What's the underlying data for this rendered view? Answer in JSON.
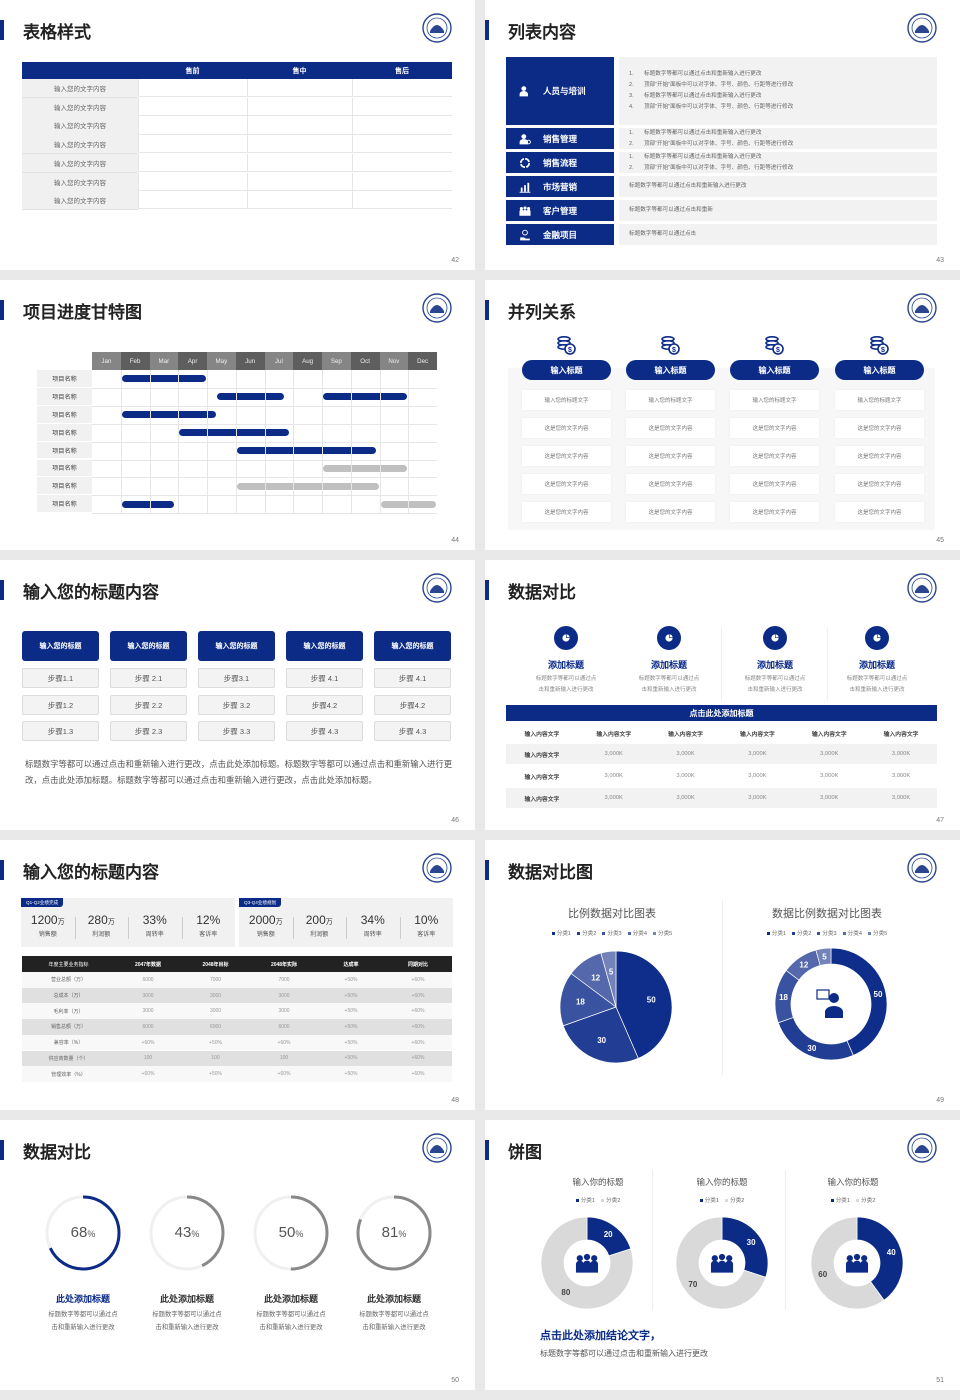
{
  "colors": {
    "primary": "#0b2b87",
    "gray_bar": "#c0c0c0",
    "ring_gray": "#888888",
    "donut_gray": "#d9d9d9"
  },
  "slides": [
    {
      "title": "表格样式",
      "page": "42",
      "logo": "school-seal",
      "table": {
        "headers": [
          "",
          "售前",
          "售中",
          "售后"
        ],
        "rows": [
          "输入您的文字内容",
          "输入您的文字内容",
          "输入您的文字内容",
          "输入您的文字内容",
          "输入您的文字内容",
          "输入您的文字内容",
          "输入您的文字内容"
        ]
      }
    },
    {
      "title": "列表内容",
      "page": "43",
      "items": [
        {
          "label": "人员与培训",
          "icon": "training-icon",
          "numbered": true,
          "lines": [
            "标题数字等都可以通过点击和重新输入进行更改",
            "顶部“开始”面板中可以对字体、字号、颜色、行距等进行修改",
            "标题数字等都可以通过点击和重新输入进行更改",
            "顶部“开始”面板中可以对字体、字号、颜色、行距等进行修改"
          ]
        },
        {
          "label": "销售管理",
          "icon": "sales-manager-icon",
          "numbered": true,
          "lines": [
            "标题数字等都可以通过点击和重新输入进行更改",
            "顶部“开始”面板中可以对字体、字号、颜色、行距等进行修改"
          ]
        },
        {
          "label": "销售流程",
          "icon": "cycle-icon",
          "numbered": true,
          "lines": [
            "标题数字等都可以通过点击和重新输入进行更改",
            "顶部“开始”面板中可以对字体、字号、颜色、行距等进行修改"
          ]
        },
        {
          "label": "市场营销",
          "icon": "bar-chart-icon",
          "numbered": false,
          "lines": [
            "标题数字等都可以通过点击和重新输入进行更改"
          ]
        },
        {
          "label": "客户管理",
          "icon": "users-icon",
          "numbered": false,
          "lines": [
            "标题数字等都可以通过点击和重新"
          ]
        },
        {
          "label": "金融项目",
          "icon": "money-hand-icon",
          "numbered": false,
          "lines": [
            "标题数字等都可以通过点击"
          ]
        }
      ]
    },
    {
      "title": "项目进度甘特图",
      "page": "44",
      "months": [
        "Jan",
        "Feb",
        "Mar",
        "Apr",
        "May",
        "Jun",
        "Jul",
        "Aug",
        "Sep",
        "Oct",
        "Nov",
        "Dec"
      ],
      "rows": [
        {
          "label": "项目名称",
          "bars": [
            {
              "start": 1,
              "end": 4,
              "status": "active"
            }
          ]
        },
        {
          "label": "项目名称",
          "bars": [
            {
              "start": 4.3,
              "end": 6.7,
              "status": "active"
            },
            {
              "start": 8,
              "end": 11,
              "status": "active"
            }
          ]
        },
        {
          "label": "项目名称",
          "bars": [
            {
              "start": 1,
              "end": 4.35,
              "status": "active"
            }
          ]
        },
        {
          "label": "项目名称",
          "bars": [
            {
              "start": 3,
              "end": 6.9,
              "status": "active"
            }
          ]
        },
        {
          "label": "项目名称",
          "bars": [
            {
              "start": 5,
              "end": 9.9,
              "status": "active"
            }
          ]
        },
        {
          "label": "项目名称",
          "bars": [
            {
              "start": 8,
              "end": 11,
              "status": "planned"
            }
          ]
        },
        {
          "label": "项目名称",
          "bars": [
            {
              "start": 5,
              "end": 10,
              "status": "planned"
            }
          ]
        },
        {
          "label": "项目名称",
          "bars": [
            {
              "start": 1,
              "end": 2.9,
              "status": "active"
            },
            {
              "start": 10,
              "end": 12,
              "status": "planned"
            }
          ]
        }
      ]
    },
    {
      "title": "并列关系",
      "page": "45",
      "columns": [
        {
          "title": "输入标题",
          "icon": "coins-icon",
          "items": [
            "输入您的标题文字",
            "这是您的文字内容",
            "这是您的文字内容",
            "这是您的文字内容",
            "这是您的文字内容"
          ]
        },
        {
          "title": "输入标题",
          "icon": "coins-icon",
          "items": [
            "输入您的标题文字",
            "这是您的文字内容",
            "这是您的文字内容",
            "这是您的文字内容",
            "这是您的文字内容"
          ]
        },
        {
          "title": "输入标题",
          "icon": "coins-icon",
          "items": [
            "输入您的标题文字",
            "这是您的文字内容",
            "这是您的文字内容",
            "这是您的文字内容",
            "这是您的文字内容"
          ]
        },
        {
          "title": "输入标题",
          "icon": "coins-icon",
          "items": [
            "输入您的标题文字",
            "这是您的文字内容",
            "这是您的文字内容",
            "这是您的文字内容",
            "这是您的文字内容"
          ]
        }
      ]
    },
    {
      "title": "输入您的标题内容",
      "page": "46",
      "columns": [
        {
          "title": "输入您的标题",
          "steps": [
            "步骤1.1",
            "步骤1.2",
            "步骤1.3"
          ]
        },
        {
          "title": "输入您的标题",
          "steps": [
            "步骤 2.1",
            "步骤 2.2",
            "步骤 2.3"
          ]
        },
        {
          "title": "输入您的标题",
          "steps": [
            "步骤3.1",
            "步骤 3.2",
            "步骤 3.3"
          ]
        },
        {
          "title": "输入您的标题",
          "steps": [
            "步骤 4.1",
            "步骤4.2",
            "步骤 4.3"
          ]
        },
        {
          "title": "输入您的标题",
          "steps": [
            "步骤 4.1",
            "步骤4.2",
            "步骤 4.3"
          ]
        }
      ],
      "paragraph": "标题数字等都可以通过点击和重新输入进行更改，点击此处添加标题。标题数字等都可以通过点击和重新输入进行更改，点击此处添加标题。标题数字等都可以通过点击和重新输入进行更改，点击此处添加标题。"
    },
    {
      "title": "数据对比",
      "page": "47",
      "features": [
        {
          "title": "添加标题",
          "icon": "pie-icon",
          "desc": [
            "标题数字等都可以通过点",
            "击和重新输入进行更改"
          ]
        },
        {
          "title": "添加标题",
          "icon": "pie-icon",
          "desc": [
            "标题数字等都可以通过点",
            "击和重新输入进行更改"
          ]
        },
        {
          "title": "添加标题",
          "icon": "pie-icon",
          "desc": [
            "标题数字等都可以通过点",
            "击和重新输入进行更改"
          ]
        },
        {
          "title": "添加标题",
          "icon": "pie-icon",
          "desc": [
            "标题数字等都可以通过点",
            "击和重新输入进行更改"
          ]
        }
      ],
      "table_title": "点击此处添加标题",
      "headers": [
        "输入内容文字",
        "输入内容文字",
        "输入内容文字",
        "输入内容文字",
        "输入内容文字",
        "输入内容文字"
      ],
      "rows": [
        [
          "输入内容文字",
          "3,000K",
          "3,000K",
          "3,000K",
          "3,000K",
          "3,000K"
        ],
        [
          "输入内容文字",
          "3,000K",
          "3,000K",
          "3,000K",
          "3,000K",
          "3,000K"
        ],
        [
          "输入内容文字",
          "3,000K",
          "3,000K",
          "3,000K",
          "3,000K",
          "3,000K"
        ]
      ]
    },
    {
      "title": "输入您的标题内容",
      "page": "48",
      "cards": [
        {
          "tag": "Q1-Q2业绩完成",
          "stats": [
            {
              "value": "1200",
              "unit": "万",
              "label": "销售额"
            },
            {
              "value": "280",
              "unit": "万",
              "label": "利润额"
            },
            {
              "value": "33%",
              "unit": "",
              "label": "周转率"
            },
            {
              "value": "12%",
              "unit": "",
              "label": "客诉率"
            }
          ]
        },
        {
          "tag": "Q3-Q4业绩规划",
          "stats": [
            {
              "value": "2000",
              "unit": "万",
              "label": "销售额"
            },
            {
              "value": "200",
              "unit": "万",
              "label": "利润额"
            },
            {
              "value": "34%",
              "unit": "",
              "label": "周转率"
            },
            {
              "value": "10%",
              "unit": "",
              "label": "客诉率"
            }
          ]
        }
      ],
      "headers": [
        "年度主要业务指标",
        "2047年数据",
        "2048年目标",
        "2048年实际",
        "达成率",
        "同期对比"
      ],
      "rows": [
        [
          "营业总额（万）",
          "6000",
          "7000",
          "7000",
          "+50%",
          "+60%"
        ],
        [
          "总成本（万）",
          "3000",
          "3000",
          "3000",
          "+50%",
          "+60%"
        ],
        [
          "毛利率（万）",
          "3000",
          "3000",
          "3000",
          "+50%",
          "+60%"
        ],
        [
          "销售总额（万）",
          "6000",
          "6000",
          "6000",
          "+50%",
          "+60%"
        ],
        [
          "兼容率（%）",
          "+60%",
          "+50%",
          "+60%",
          "+50%",
          "+60%"
        ],
        [
          "供应商数量（个）",
          "100",
          "100",
          "100",
          "+50%",
          "+60%"
        ],
        [
          "管理效率（%）",
          "+60%",
          "+50%",
          "+60%",
          "+50%",
          "+60%"
        ]
      ]
    },
    {
      "title": "数据对比图",
      "page": "49",
      "center_icon": "consultant-icon"
    },
    {
      "title": "数据对比",
      "page": "50",
      "rings": [
        {
          "percent": 68,
          "unit": "%",
          "title": "此处添加标题",
          "desc": [
            "标题数字等都可以通过点",
            "击和重新输入进行更改"
          ],
          "color": "#0b2b87"
        },
        {
          "percent": 43,
          "unit": "%",
          "title": "此处添加标题",
          "desc": [
            "标题数字等都可以通过点",
            "击和重新输入进行更改"
          ],
          "color": "#888888"
        },
        {
          "percent": 50,
          "unit": "%",
          "title": "此处添加标题",
          "desc": [
            "标题数字等都可以通过点",
            "击和重新输入进行更改"
          ],
          "color": "#888888"
        },
        {
          "percent": 81,
          "unit": "%",
          "title": "此处添加标题",
          "desc": [
            "标题数字等都可以通过点",
            "击和重新输入进行更改"
          ],
          "color": "#888888"
        }
      ]
    },
    {
      "title": "饼图",
      "page": "51",
      "center_icon": "team-icon",
      "conclusion": "点击此处添加结论文字，",
      "conclusion_text": "标题数字等都可以通过点击和重新输入进行更改"
    }
  ],
  "chart_data": [
    {
      "type": "pie",
      "title": "比例数据对比图表",
      "categories": [
        "分类1",
        "分类2",
        "分类3",
        "分类4",
        "分类5"
      ],
      "values": [
        50,
        30,
        18,
        12,
        5
      ],
      "colors": [
        "#0f2d8a",
        "#213e94",
        "#3a53a0",
        "#5468ab",
        "#7383b9"
      ],
      "legend": "top"
    },
    {
      "type": "pie",
      "donut": true,
      "title": "数据比例数据对比图表",
      "categories": [
        "分类1",
        "分类2",
        "分类3",
        "分类4",
        "分类5"
      ],
      "values": [
        50,
        30,
        18,
        12,
        5
      ],
      "colors": [
        "#0f2d8a",
        "#213e94",
        "#3a53a0",
        "#5468ab",
        "#7383b9"
      ],
      "legend": "top"
    },
    {
      "type": "pie",
      "donut": true,
      "title": "输入你的标题",
      "categories": [
        "分类1",
        "分类2"
      ],
      "values": [
        20,
        80
      ],
      "colors": [
        "#0b2b87",
        "#d9d9d9"
      ],
      "legend": "top"
    },
    {
      "type": "pie",
      "donut": true,
      "title": "输入你的标题",
      "categories": [
        "分类1",
        "分类2"
      ],
      "values": [
        30,
        70
      ],
      "colors": [
        "#0b2b87",
        "#d9d9d9"
      ],
      "legend": "top"
    },
    {
      "type": "pie",
      "donut": true,
      "title": "输入你的标题",
      "categories": [
        "分类1",
        "分类2"
      ],
      "values": [
        40,
        60
      ],
      "colors": [
        "#0b2b87",
        "#d9d9d9"
      ],
      "legend": "top"
    }
  ]
}
